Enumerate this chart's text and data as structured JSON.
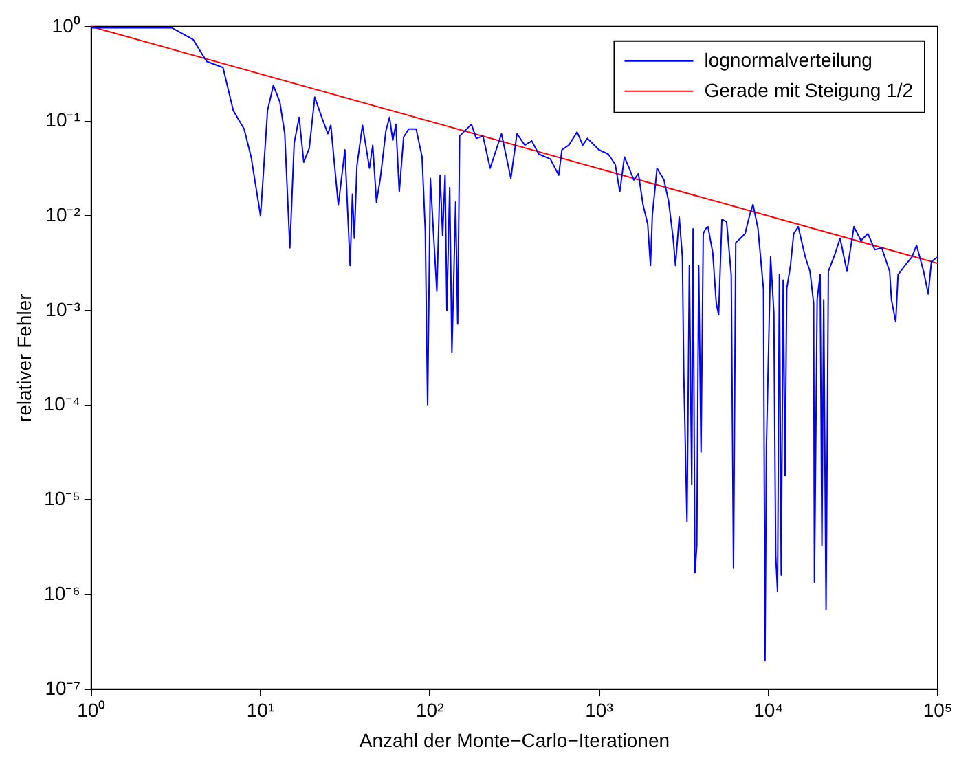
{
  "chart_data": {
    "type": "line",
    "xlabel": "Anzahl der Monte−Carlo−Iterationen",
    "ylabel": "relativer Fehler",
    "log": "xy",
    "grid": false,
    "legend": "top right",
    "marker": "none",
    "line_style": "solid",
    "xlim": [
      1,
      100000
    ],
    "ylim": [
      1e-07,
      1
    ],
    "xticks": [
      {
        "value": 1,
        "label": "10⁰"
      },
      {
        "value": 10,
        "label": "10¹"
      },
      {
        "value": 100,
        "label": "10²"
      },
      {
        "value": 1000,
        "label": "10³"
      },
      {
        "value": 10000,
        "label": "10⁴"
      },
      {
        "value": 100000,
        "label": "10⁵"
      }
    ],
    "yticks": [
      {
        "value": 1e-07,
        "label": "10⁻⁷"
      },
      {
        "value": 1e-06,
        "label": "10⁻⁶"
      },
      {
        "value": 1e-05,
        "label": "10⁻⁵"
      },
      {
        "value": 0.0001,
        "label": "10⁻⁴"
      },
      {
        "value": 0.001,
        "label": "10⁻³"
      },
      {
        "value": 0.01,
        "label": "10⁻²"
      },
      {
        "value": 0.1,
        "label": "10⁻¹"
      },
      {
        "value": 1,
        "label": "10⁰"
      }
    ],
    "series": [
      {
        "name": "lognormalverteilung",
        "color": "#0000ff",
        "x": [
          1,
          3,
          4,
          4.8,
          6,
          6.9,
          8,
          8.8,
          10,
          11,
          11.9,
          13,
          13.9,
          14.9,
          15.8,
          16.9,
          18,
          19.4,
          20.9,
          23,
          25,
          26,
          28.8,
          31.5,
          33.8,
          34.9,
          35.8,
          37.1,
          40,
          44,
          46,
          48.4,
          51,
          55,
          57.8,
          60.4,
          63,
          66,
          70,
          75,
          83,
          90,
          94,
          97,
          100.7,
          110,
          115,
          119,
          123,
          126,
          131,
          135,
          142,
          146,
          150,
          176,
          188,
          206,
          227,
          265,
          301,
          327,
          364,
          400,
          440,
          515,
          577,
          603,
          662,
          741,
          800,
          853,
          998,
          1133,
          1245,
          1325,
          1410,
          1504,
          1602,
          1706,
          1818,
          1936,
          2010,
          2062,
          2198,
          2416,
          2571,
          2737,
          2825,
          2972,
          3103,
          3162,
          3304,
          3412,
          3524,
          3589,
          3681,
          3776,
          3873,
          3999,
          4121,
          4257,
          4395,
          4688,
          4920,
          5080,
          5310,
          5660,
          6030,
          6220,
          6410,
          6840,
          7280,
          7750,
          8110,
          8680,
          9350,
          9550,
          9730,
          10300,
          10770,
          11040,
          11320,
          11610,
          11900,
          12220,
          12540,
          12830,
          13500,
          14100,
          15000,
          16500,
          17600,
          18500,
          18700,
          19400,
          20200,
          20700,
          21200,
          21900,
          22600,
          24900,
          26500,
          29100,
          32000,
          35200,
          38700,
          42500,
          46700,
          52000,
          53300,
          56500,
          58300,
          64100,
          70500,
          75000,
          82500,
          87900,
          91800,
          100000
        ],
        "values": [
          0.97,
          0.97,
          0.73,
          0.43,
          0.37,
          0.13,
          0.083,
          0.042,
          0.01,
          0.13,
          0.24,
          0.16,
          0.074,
          0.0046,
          0.059,
          0.11,
          0.037,
          0.052,
          0.18,
          0.11,
          0.074,
          0.091,
          0.013,
          0.05,
          0.003,
          0.017,
          0.0058,
          0.034,
          0.091,
          0.032,
          0.056,
          0.014,
          0.025,
          0.079,
          0.11,
          0.063,
          0.093,
          0.018,
          0.068,
          0.083,
          0.083,
          0.042,
          0.0069,
          0.0001,
          0.025,
          0.0016,
          0.027,
          0.0062,
          0.027,
          0.001,
          0.02,
          0.00036,
          0.014,
          0.00072,
          0.07,
          0.093,
          0.066,
          0.07,
          0.032,
          0.074,
          0.025,
          0.074,
          0.056,
          0.062,
          0.045,
          0.04,
          0.027,
          0.05,
          0.056,
          0.077,
          0.056,
          0.066,
          0.05,
          0.045,
          0.035,
          0.018,
          0.042,
          0.032,
          0.024,
          0.028,
          0.013,
          0.0082,
          0.003,
          0.0102,
          0.032,
          0.024,
          0.0144,
          0.0058,
          0.003,
          0.0097,
          0.0037,
          0.00022,
          5.9e-06,
          0.003,
          1.45e-05,
          0.0073,
          1.7e-06,
          3.3e-06,
          0.003,
          3.2e-05,
          0.0065,
          0.0073,
          0.0077,
          0.0041,
          0.0012,
          0.0009,
          0.0092,
          0.0087,
          0.0024,
          1.9e-06,
          0.0052,
          0.0058,
          0.0065,
          0.0102,
          0.0132,
          0.0073,
          0.00168,
          2e-07,
          3.6e-05,
          0.0037,
          0.00095,
          2.6e-06,
          1.07e-06,
          0.0024,
          1.6e-06,
          0.0021,
          1.8e-05,
          0.0017,
          0.003,
          0.0065,
          0.0077,
          0.0037,
          0.0026,
          0.0012,
          1.35e-06,
          0.0013,
          0.0024,
          3.3e-06,
          0.0013,
          6.9e-07,
          0.0026,
          0.0041,
          0.0058,
          0.0026,
          0.0077,
          0.0055,
          0.0065,
          0.0044,
          0.0046,
          0.0026,
          0.0013,
          0.00076,
          0.0024,
          0.003,
          0.0037,
          0.0049,
          0.0026,
          0.0015,
          0.0033,
          0.0037
        ]
      },
      {
        "name": "Gerade mit Steigung 1/2",
        "color": "#ff0000",
        "x": [
          1,
          100000
        ],
        "values": [
          1,
          0.00316
        ]
      }
    ]
  }
}
